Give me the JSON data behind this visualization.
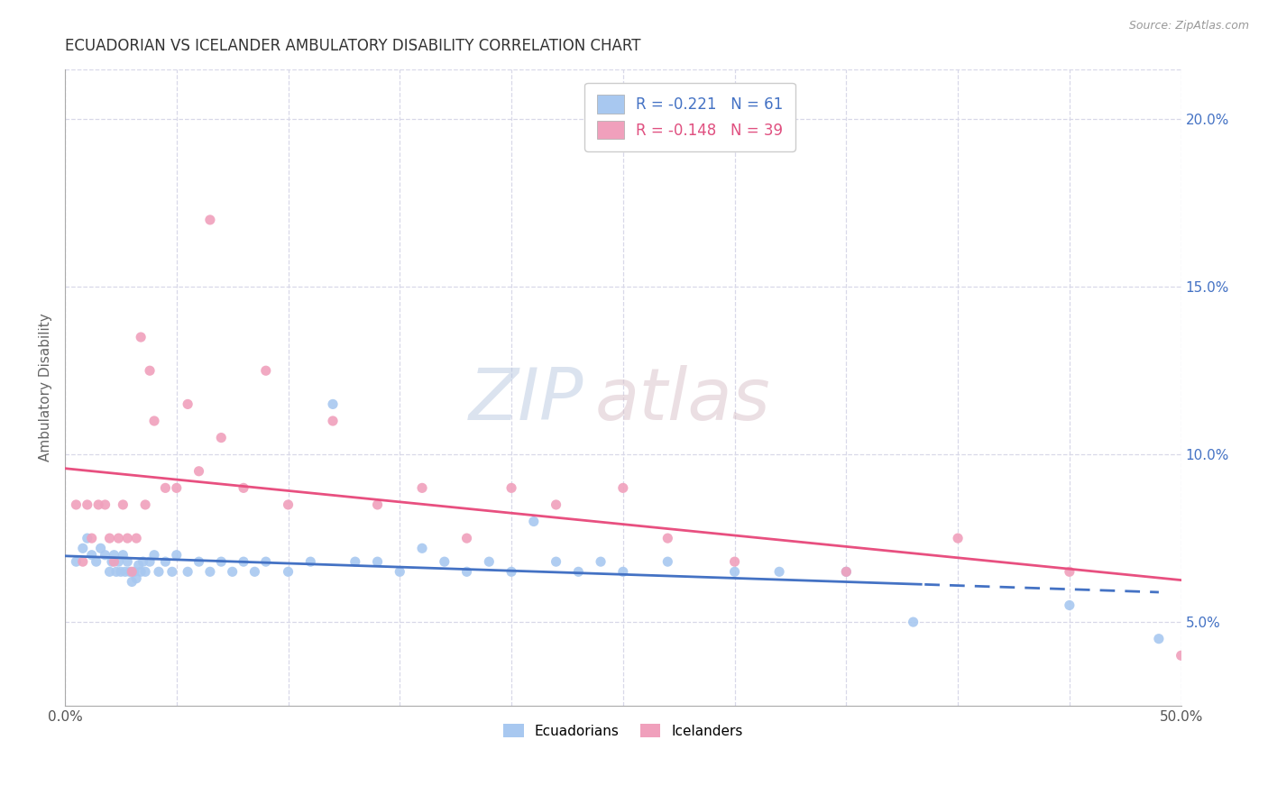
{
  "title": "ECUADORIAN VS ICELANDER AMBULATORY DISABILITY CORRELATION CHART",
  "source": "Source: ZipAtlas.com",
  "xlabel": "",
  "ylabel": "Ambulatory Disability",
  "legend_labels": [
    "Ecuadorians",
    "Icelanders"
  ],
  "r_ecuadorian": -0.221,
  "n_ecuadorian": 61,
  "r_icelander": -0.148,
  "n_icelander": 39,
  "color_ecuadorian": "#a8c8f0",
  "color_icelander": "#f0a0bc",
  "trendline_ecuadorian": "#4472c4",
  "trendline_icelander": "#e85080",
  "xlim": [
    0.0,
    0.5
  ],
  "ylim": [
    0.025,
    0.215
  ],
  "right_yticks": [
    0.05,
    0.1,
    0.15,
    0.2
  ],
  "right_ytick_labels": [
    "5.0%",
    "10.0%",
    "15.0%",
    "20.0%"
  ],
  "xticks": [
    0.0,
    0.05,
    0.1,
    0.15,
    0.2,
    0.25,
    0.3,
    0.35,
    0.4,
    0.45,
    0.5
  ],
  "xtick_labels": [
    "0.0%",
    "",
    "",
    "",
    "",
    "",
    "",
    "",
    "",
    "",
    "50.0%"
  ],
  "trendline_split_x": 0.385,
  "background_color": "#ffffff",
  "grid_color": "#d8d8e8",
  "title_color": "#333333",
  "axis_label_color": "#666666",
  "right_ytick_color": "#4472c4",
  "ecuadorian_x": [
    0.005,
    0.008,
    0.01,
    0.012,
    0.014,
    0.016,
    0.018,
    0.02,
    0.021,
    0.022,
    0.023,
    0.024,
    0.025,
    0.026,
    0.027,
    0.028,
    0.029,
    0.03,
    0.031,
    0.032,
    0.033,
    0.034,
    0.035,
    0.036,
    0.038,
    0.04,
    0.042,
    0.045,
    0.048,
    0.05,
    0.055,
    0.06,
    0.065,
    0.07,
    0.075,
    0.08,
    0.085,
    0.09,
    0.1,
    0.11,
    0.12,
    0.13,
    0.14,
    0.15,
    0.16,
    0.17,
    0.18,
    0.19,
    0.2,
    0.21,
    0.22,
    0.23,
    0.24,
    0.25,
    0.27,
    0.3,
    0.32,
    0.35,
    0.38,
    0.45,
    0.49
  ],
  "ecuadorian_y": [
    0.068,
    0.072,
    0.075,
    0.07,
    0.068,
    0.072,
    0.07,
    0.065,
    0.068,
    0.07,
    0.065,
    0.068,
    0.065,
    0.07,
    0.065,
    0.068,
    0.065,
    0.062,
    0.065,
    0.063,
    0.067,
    0.065,
    0.068,
    0.065,
    0.068,
    0.07,
    0.065,
    0.068,
    0.065,
    0.07,
    0.065,
    0.068,
    0.065,
    0.068,
    0.065,
    0.068,
    0.065,
    0.068,
    0.065,
    0.068,
    0.115,
    0.068,
    0.068,
    0.065,
    0.072,
    0.068,
    0.065,
    0.068,
    0.065,
    0.08,
    0.068,
    0.065,
    0.068,
    0.065,
    0.068,
    0.065,
    0.065,
    0.065,
    0.05,
    0.055,
    0.045
  ],
  "icelander_x": [
    0.005,
    0.008,
    0.01,
    0.012,
    0.015,
    0.018,
    0.02,
    0.022,
    0.024,
    0.026,
    0.028,
    0.03,
    0.032,
    0.034,
    0.036,
    0.038,
    0.04,
    0.045,
    0.05,
    0.055,
    0.06,
    0.065,
    0.07,
    0.08,
    0.09,
    0.1,
    0.12,
    0.14,
    0.16,
    0.18,
    0.2,
    0.22,
    0.25,
    0.27,
    0.3,
    0.35,
    0.4,
    0.45,
    0.5
  ],
  "icelander_y": [
    0.085,
    0.068,
    0.085,
    0.075,
    0.085,
    0.085,
    0.075,
    0.068,
    0.075,
    0.085,
    0.075,
    0.065,
    0.075,
    0.135,
    0.085,
    0.125,
    0.11,
    0.09,
    0.09,
    0.115,
    0.095,
    0.17,
    0.105,
    0.09,
    0.125,
    0.085,
    0.11,
    0.085,
    0.09,
    0.075,
    0.09,
    0.085,
    0.09,
    0.075,
    0.068,
    0.065,
    0.075,
    0.065,
    0.04
  ]
}
